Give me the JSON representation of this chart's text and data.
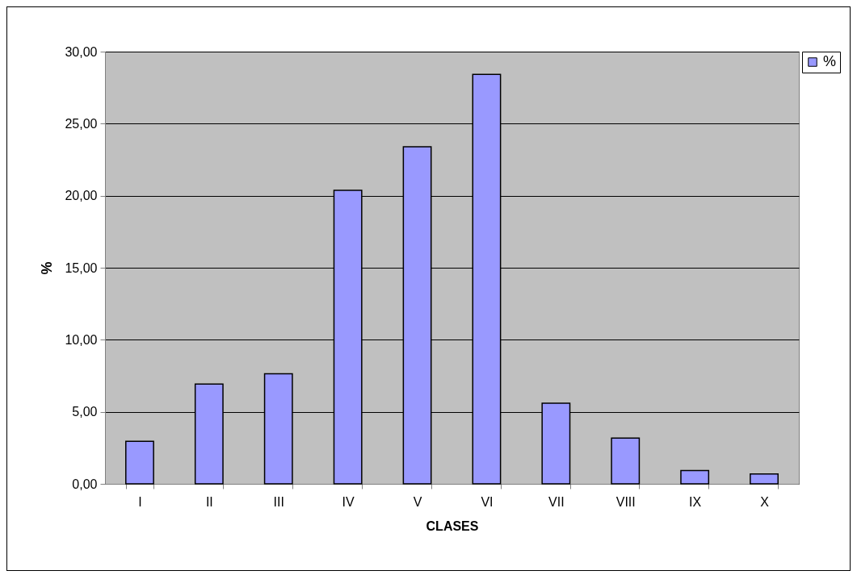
{
  "chart_data": {
    "type": "bar",
    "xlabel": "CLASES",
    "ylabel": "%",
    "categories": [
      "I",
      "II",
      "III",
      "IV",
      "V",
      "VI",
      "VII",
      "VIII",
      "IX",
      "X"
    ],
    "series": [
      {
        "name": "%",
        "color": "#9999ff",
        "values": [
          2.95,
          6.93,
          7.64,
          20.37,
          23.4,
          28.42,
          5.6,
          3.18,
          0.92,
          0.69
        ]
      }
    ],
    "ylim": [
      0,
      30
    ],
    "yticks": [
      {
        "value": 0,
        "label": "0,00"
      },
      {
        "value": 5,
        "label": "5,00"
      },
      {
        "value": 10,
        "label": "10,00"
      },
      {
        "value": 15,
        "label": "15,00"
      },
      {
        "value": 20,
        "label": "20,00"
      },
      {
        "value": 25,
        "label": "25,00"
      },
      {
        "value": 30,
        "label": "30,00"
      }
    ],
    "grid": "y",
    "legend": "right"
  }
}
